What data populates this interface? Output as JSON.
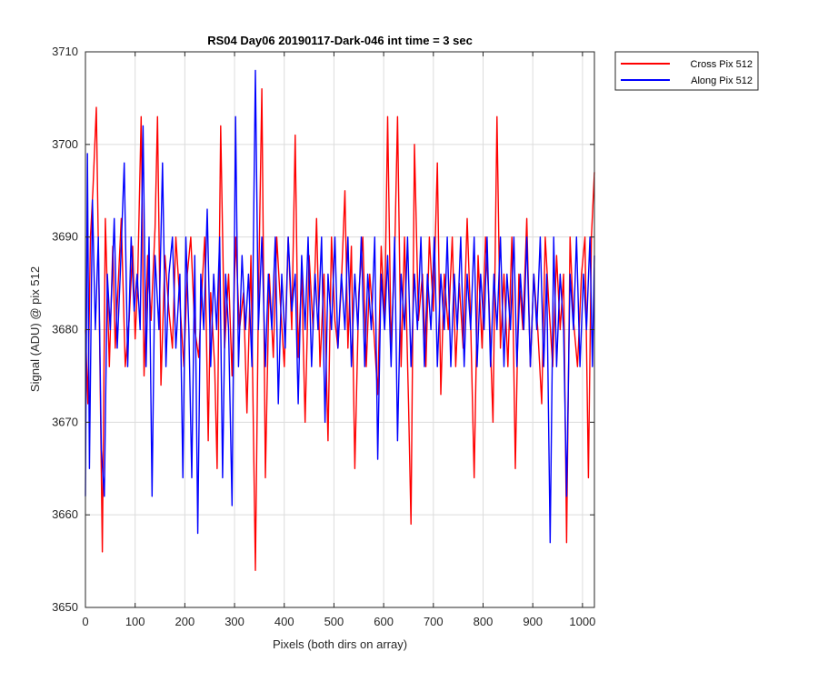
{
  "chart_data": {
    "type": "line",
    "title": "RS04 Day06 20190117-Dark-046 int time = 3 sec",
    "xlabel": "Pixels (both dirs on array)",
    "ylabel": "Signal (ADU) @ pix 512",
    "xlim": [
      0,
      1024
    ],
    "ylim": [
      3650,
      3710
    ],
    "xticks": [
      0,
      100,
      200,
      300,
      400,
      500,
      600,
      700,
      800,
      900,
      1000
    ],
    "yticks": [
      3650,
      3660,
      3670,
      3680,
      3690,
      3700,
      3710
    ],
    "grid": true,
    "legend_position": "outside-top-right",
    "series": [
      {
        "name": "Cross Pix 512",
        "color": "#ff0000",
        "points": [
          [
            0,
            3680
          ],
          [
            5,
            3672
          ],
          [
            10,
            3690
          ],
          [
            15,
            3695
          ],
          [
            22,
            3704
          ],
          [
            27,
            3685
          ],
          [
            34,
            3656
          ],
          [
            40,
            3692
          ],
          [
            48,
            3676
          ],
          [
            55,
            3689
          ],
          [
            60,
            3678
          ],
          [
            66,
            3685
          ],
          [
            72,
            3692
          ],
          [
            80,
            3676
          ],
          [
            88,
            3681
          ],
          [
            95,
            3689
          ],
          [
            100,
            3679
          ],
          [
            105,
            3685
          ],
          [
            112,
            3703
          ],
          [
            118,
            3675
          ],
          [
            125,
            3688
          ],
          [
            132,
            3681
          ],
          [
            140,
            3691
          ],
          [
            145,
            3703
          ],
          [
            152,
            3674
          ],
          [
            160,
            3688
          ],
          [
            168,
            3682
          ],
          [
            175,
            3678
          ],
          [
            182,
            3690
          ],
          [
            190,
            3683
          ],
          [
            198,
            3676
          ],
          [
            205,
            3686
          ],
          [
            212,
            3690
          ],
          [
            220,
            3680
          ],
          [
            228,
            3677
          ],
          [
            235,
            3685
          ],
          [
            240,
            3690
          ],
          [
            247,
            3668
          ],
          [
            252,
            3684
          ],
          [
            260,
            3676
          ],
          [
            265,
            3665
          ],
          [
            272,
            3702
          ],
          [
            280,
            3678
          ],
          [
            288,
            3686
          ],
          [
            295,
            3675
          ],
          [
            302,
            3690
          ],
          [
            310,
            3680
          ],
          [
            318,
            3684
          ],
          [
            325,
            3671
          ],
          [
            333,
            3688
          ],
          [
            342,
            3654
          ],
          [
            348,
            3683
          ],
          [
            355,
            3706
          ],
          [
            362,
            3664
          ],
          [
            370,
            3686
          ],
          [
            378,
            3677
          ],
          [
            385,
            3690
          ],
          [
            392,
            3683
          ],
          [
            400,
            3676
          ],
          [
            408,
            3690
          ],
          [
            415,
            3680
          ],
          [
            422,
            3701
          ],
          [
            428,
            3677
          ],
          [
            435,
            3686
          ],
          [
            442,
            3670
          ],
          [
            450,
            3688
          ],
          [
            458,
            3680
          ],
          [
            465,
            3692
          ],
          [
            472,
            3676
          ],
          [
            480,
            3686
          ],
          [
            488,
            3668
          ],
          [
            495,
            3690
          ],
          [
            502,
            3681
          ],
          [
            508,
            3678
          ],
          [
            515,
            3685
          ],
          [
            522,
            3695
          ],
          [
            528,
            3678
          ],
          [
            535,
            3689
          ],
          [
            542,
            3665
          ],
          [
            550,
            3684
          ],
          [
            558,
            3690
          ],
          [
            565,
            3676
          ],
          [
            572,
            3686
          ],
          [
            580,
            3680
          ],
          [
            588,
            3673
          ],
          [
            595,
            3689
          ],
          [
            602,
            3681
          ],
          [
            608,
            3703
          ],
          [
            615,
            3678
          ],
          [
            622,
            3688
          ],
          [
            628,
            3703
          ],
          [
            635,
            3676
          ],
          [
            642,
            3690
          ],
          [
            650,
            3672
          ],
          [
            655,
            3659
          ],
          [
            662,
            3700
          ],
          [
            670,
            3681
          ],
          [
            678,
            3686
          ],
          [
            685,
            3676
          ],
          [
            692,
            3690
          ],
          [
            700,
            3682
          ],
          [
            708,
            3698
          ],
          [
            715,
            3673
          ],
          [
            722,
            3686
          ],
          [
            730,
            3680
          ],
          [
            738,
            3690
          ],
          [
            745,
            3676
          ],
          [
            752,
            3685
          ],
          [
            760,
            3678
          ],
          [
            768,
            3692
          ],
          [
            775,
            3681
          ],
          [
            782,
            3664
          ],
          [
            790,
            3688
          ],
          [
            798,
            3678
          ],
          [
            805,
            3690
          ],
          [
            812,
            3683
          ],
          [
            820,
            3670
          ],
          [
            828,
            3703
          ],
          [
            835,
            3678
          ],
          [
            842,
            3686
          ],
          [
            850,
            3676
          ],
          [
            858,
            3690
          ],
          [
            865,
            3665
          ],
          [
            872,
            3686
          ],
          [
            880,
            3680
          ],
          [
            888,
            3692
          ],
          [
            895,
            3676
          ],
          [
            902,
            3686
          ],
          [
            910,
            3680
          ],
          [
            918,
            3672
          ],
          [
            925,
            3690
          ],
          [
            932,
            3683
          ],
          [
            940,
            3676
          ],
          [
            948,
            3688
          ],
          [
            955,
            3680
          ],
          [
            962,
            3686
          ],
          [
            968,
            3657
          ],
          [
            975,
            3690
          ],
          [
            982,
            3681
          ],
          [
            990,
            3676
          ],
          [
            998,
            3686
          ],
          [
            1005,
            3690
          ],
          [
            1012,
            3664
          ],
          [
            1018,
            3690
          ],
          [
            1024,
            3697
          ]
        ]
      },
      {
        "name": "Along Pix 512",
        "color": "#0000ff",
        "points": [
          [
            0,
            3662
          ],
          [
            4,
            3699
          ],
          [
            8,
            3665
          ],
          [
            14,
            3694
          ],
          [
            20,
            3680
          ],
          [
            26,
            3690
          ],
          [
            32,
            3667
          ],
          [
            38,
            3662
          ],
          [
            44,
            3686
          ],
          [
            50,
            3680
          ],
          [
            58,
            3692
          ],
          [
            64,
            3678
          ],
          [
            70,
            3686
          ],
          [
            78,
            3698
          ],
          [
            85,
            3676
          ],
          [
            92,
            3690
          ],
          [
            98,
            3682
          ],
          [
            104,
            3686
          ],
          [
            110,
            3680
          ],
          [
            116,
            3702
          ],
          [
            122,
            3676
          ],
          [
            128,
            3690
          ],
          [
            134,
            3662
          ],
          [
            140,
            3688
          ],
          [
            148,
            3680
          ],
          [
            155,
            3698
          ],
          [
            162,
            3676
          ],
          [
            168,
            3686
          ],
          [
            175,
            3690
          ],
          [
            182,
            3678
          ],
          [
            190,
            3686
          ],
          [
            196,
            3664
          ],
          [
            202,
            3690
          ],
          [
            208,
            3680
          ],
          [
            214,
            3664
          ],
          [
            220,
            3688
          ],
          [
            226,
            3658
          ],
          [
            232,
            3686
          ],
          [
            238,
            3680
          ],
          [
            245,
            3693
          ],
          [
            252,
            3676
          ],
          [
            258,
            3686
          ],
          [
            264,
            3680
          ],
          [
            270,
            3690
          ],
          [
            276,
            3664
          ],
          [
            282,
            3686
          ],
          [
            288,
            3680
          ],
          [
            295,
            3661
          ],
          [
            302,
            3703
          ],
          [
            308,
            3676
          ],
          [
            315,
            3688
          ],
          [
            322,
            3680
          ],
          [
            328,
            3686
          ],
          [
            335,
            3676
          ],
          [
            342,
            3708
          ],
          [
            348,
            3680
          ],
          [
            355,
            3690
          ],
          [
            362,
            3676
          ],
          [
            368,
            3686
          ],
          [
            375,
            3680
          ],
          [
            382,
            3690
          ],
          [
            388,
            3672
          ],
          [
            395,
            3686
          ],
          [
            402,
            3678
          ],
          [
            408,
            3690
          ],
          [
            415,
            3682
          ],
          [
            422,
            3686
          ],
          [
            428,
            3672
          ],
          [
            435,
            3688
          ],
          [
            442,
            3680
          ],
          [
            448,
            3690
          ],
          [
            455,
            3676
          ],
          [
            462,
            3686
          ],
          [
            468,
            3680
          ],
          [
            475,
            3690
          ],
          [
            482,
            3670
          ],
          [
            488,
            3686
          ],
          [
            495,
            3680
          ],
          [
            502,
            3690
          ],
          [
            508,
            3678
          ],
          [
            515,
            3686
          ],
          [
            522,
            3680
          ],
          [
            528,
            3690
          ],
          [
            535,
            3676
          ],
          [
            542,
            3686
          ],
          [
            548,
            3680
          ],
          [
            555,
            3690
          ],
          [
            562,
            3676
          ],
          [
            568,
            3686
          ],
          [
            575,
            3680
          ],
          [
            582,
            3690
          ],
          [
            588,
            3666
          ],
          [
            595,
            3686
          ],
          [
            602,
            3680
          ],
          [
            608,
            3688
          ],
          [
            615,
            3676
          ],
          [
            622,
            3690
          ],
          [
            628,
            3668
          ],
          [
            635,
            3686
          ],
          [
            642,
            3680
          ],
          [
            648,
            3690
          ],
          [
            655,
            3676
          ],
          [
            662,
            3686
          ],
          [
            668,
            3680
          ],
          [
            675,
            3690
          ],
          [
            682,
            3676
          ],
          [
            688,
            3686
          ],
          [
            695,
            3680
          ],
          [
            702,
            3690
          ],
          [
            708,
            3676
          ],
          [
            715,
            3686
          ],
          [
            722,
            3680
          ],
          [
            728,
            3690
          ],
          [
            735,
            3676
          ],
          [
            742,
            3686
          ],
          [
            748,
            3680
          ],
          [
            755,
            3690
          ],
          [
            762,
            3676
          ],
          [
            768,
            3686
          ],
          [
            775,
            3680
          ],
          [
            782,
            3690
          ],
          [
            788,
            3676
          ],
          [
            795,
            3686
          ],
          [
            802,
            3680
          ],
          [
            808,
            3690
          ],
          [
            815,
            3676
          ],
          [
            822,
            3686
          ],
          [
            828,
            3680
          ],
          [
            835,
            3690
          ],
          [
            842,
            3676
          ],
          [
            848,
            3686
          ],
          [
            855,
            3680
          ],
          [
            862,
            3690
          ],
          [
            868,
            3676
          ],
          [
            875,
            3686
          ],
          [
            882,
            3680
          ],
          [
            888,
            3690
          ],
          [
            895,
            3676
          ],
          [
            902,
            3686
          ],
          [
            908,
            3680
          ],
          [
            915,
            3690
          ],
          [
            922,
            3676
          ],
          [
            928,
            3686
          ],
          [
            935,
            3657
          ],
          [
            942,
            3690
          ],
          [
            948,
            3676
          ],
          [
            955,
            3686
          ],
          [
            962,
            3680
          ],
          [
            968,
            3662
          ],
          [
            975,
            3686
          ],
          [
            982,
            3680
          ],
          [
            988,
            3690
          ],
          [
            995,
            3676
          ],
          [
            1002,
            3686
          ],
          [
            1008,
            3680
          ],
          [
            1015,
            3690
          ],
          [
            1020,
            3676
          ],
          [
            1024,
            3688
          ]
        ]
      }
    ]
  }
}
